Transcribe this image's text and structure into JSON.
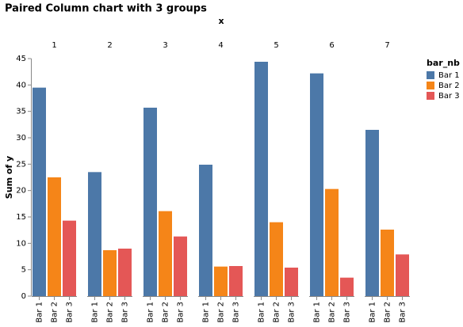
{
  "chart_data": {
    "type": "bar",
    "title": "Paired Column chart with 3 groups",
    "facet_title": "x",
    "y_title": "Sum of y",
    "legend_title": "bar_nb",
    "categories": [
      "1",
      "2",
      "3",
      "4",
      "5",
      "6",
      "7"
    ],
    "series": [
      {
        "name": "Bar 1",
        "color": "#4c78a8",
        "values": [
          39.5,
          23.5,
          35.7,
          24.9,
          44.4,
          42.2,
          31.5
        ]
      },
      {
        "name": "Bar 2",
        "color": "#f58518",
        "values": [
          22.5,
          8.7,
          16.1,
          5.6,
          14.0,
          20.3,
          12.6
        ]
      },
      {
        "name": "Bar 3",
        "color": "#e45756",
        "values": [
          14.3,
          9.0,
          11.3,
          5.7,
          5.4,
          3.5,
          7.9
        ]
      }
    ],
    "ylim": [
      0,
      45
    ],
    "yticks": [
      0,
      5,
      10,
      15,
      20,
      25,
      30,
      35,
      40,
      45
    ],
    "grid": false
  }
}
